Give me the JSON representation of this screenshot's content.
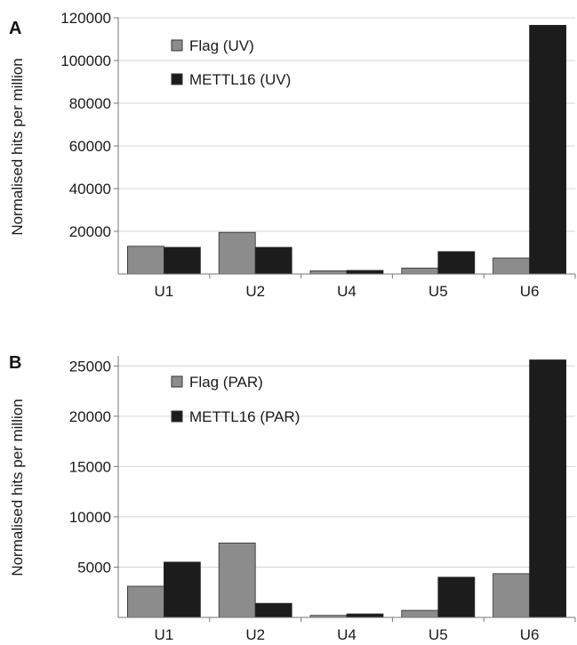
{
  "chart_data": [
    {
      "panel": "A",
      "type": "bar",
      "categories": [
        "U1",
        "U2",
        "U4",
        "U5",
        "U6"
      ],
      "series": [
        {
          "name": "Flag (UV)",
          "color": "#8c8c8c",
          "values": [
            13000,
            19500,
            1500,
            2800,
            7500
          ]
        },
        {
          "name": "METTL16 (UV)",
          "color": "#1c1c1c",
          "values": [
            12500,
            12500,
            1700,
            10500,
            116500
          ]
        }
      ],
      "ylabel": "Normalised hits per million",
      "ylim": [
        0,
        120000
      ],
      "yticks": [
        20000,
        40000,
        60000,
        80000,
        100000,
        120000
      ],
      "grid": true,
      "legend": "top-left"
    },
    {
      "panel": "B",
      "type": "bar",
      "categories": [
        "U1",
        "U2",
        "U4",
        "U5",
        "U6"
      ],
      "series": [
        {
          "name": "Flag (PAR)",
          "color": "#8c8c8c",
          "values": [
            3100,
            7400,
            200,
            700,
            4350
          ]
        },
        {
          "name": "METTL16 (PAR)",
          "color": "#1c1c1c",
          "values": [
            5500,
            1400,
            350,
            4000,
            25600
          ]
        }
      ],
      "ylabel": "Normalised hits per million",
      "ylim": [
        0,
        26000
      ],
      "yticks": [
        5000,
        10000,
        15000,
        20000,
        25000
      ],
      "grid": true,
      "legend": "top-left"
    }
  ]
}
